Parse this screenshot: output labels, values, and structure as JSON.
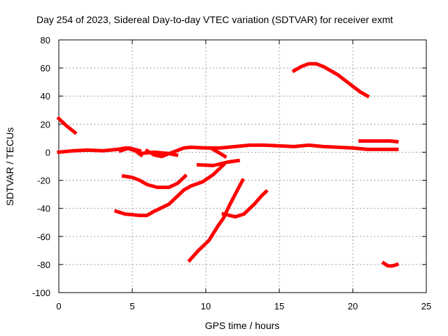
{
  "chart_data": {
    "type": "line",
    "title": "Day 254 of 2023, Sidereal Day-to-day VTEC variation (SDTVAR) for receiver exmt",
    "xlabel": "GPS time / hours",
    "ylabel": "SDTVAR / TECUs",
    "xlim": [
      0,
      25
    ],
    "ylim": [
      -100,
      80
    ],
    "xticks": [
      0,
      5,
      10,
      15,
      20,
      25
    ],
    "yticks": [
      -100,
      -80,
      -60,
      -40,
      -20,
      0,
      20,
      40,
      60,
      80
    ],
    "grid": true,
    "color": "#ff0000",
    "series": [
      {
        "name": "s1",
        "points": [
          [
            0,
            24
          ],
          [
            0.5,
            19
          ],
          [
            1.1,
            14
          ]
        ]
      },
      {
        "name": "s2",
        "points": [
          [
            0,
            0
          ],
          [
            1,
            1
          ],
          [
            2,
            1.5
          ],
          [
            3,
            1
          ],
          [
            4,
            2
          ],
          [
            4.6,
            3
          ],
          [
            5.2,
            1
          ],
          [
            5.6,
            -2
          ]
        ]
      },
      {
        "name": "s3",
        "points": [
          [
            4.2,
            1
          ],
          [
            4.8,
            3
          ],
          [
            5.5,
            1
          ]
        ]
      },
      {
        "name": "s4",
        "points": [
          [
            5.5,
            -1
          ],
          [
            6.5,
            0
          ],
          [
            7.5,
            -1
          ],
          [
            8,
            1
          ],
          [
            8.5,
            3
          ],
          [
            9,
            3.5
          ],
          [
            10,
            3
          ],
          [
            11,
            3
          ],
          [
            12,
            4
          ],
          [
            13,
            5
          ],
          [
            14,
            5
          ],
          [
            15,
            4.5
          ],
          [
            16,
            4
          ],
          [
            17,
            5
          ],
          [
            18,
            4
          ],
          [
            19,
            3.5
          ],
          [
            20,
            3
          ],
          [
            21,
            2
          ],
          [
            22,
            2
          ],
          [
            23,
            2
          ]
        ]
      },
      {
        "name": "s5",
        "points": [
          [
            6,
            1
          ],
          [
            6.5,
            -2
          ],
          [
            7,
            -3
          ],
          [
            7.5,
            -1
          ],
          [
            8,
            -2
          ]
        ]
      },
      {
        "name": "s6",
        "points": [
          [
            9.5,
            -9
          ],
          [
            10.5,
            -9.5
          ],
          [
            11.5,
            -7
          ],
          [
            12.2,
            -6
          ]
        ]
      },
      {
        "name": "s7",
        "points": [
          [
            10.5,
            2
          ],
          [
            11,
            -1
          ],
          [
            11.3,
            -3
          ]
        ]
      },
      {
        "name": "s8",
        "points": [
          [
            4.4,
            -17
          ],
          [
            5,
            -18
          ],
          [
            5.5,
            -20
          ],
          [
            6,
            -23
          ],
          [
            6.7,
            -25
          ],
          [
            7.5,
            -25
          ],
          [
            8.1,
            -22
          ],
          [
            8.6,
            -17
          ]
        ]
      },
      {
        "name": "s9",
        "points": [
          [
            3.9,
            -42
          ],
          [
            4.5,
            -44
          ],
          [
            5.5,
            -45
          ],
          [
            6,
            -45
          ],
          [
            6.5,
            -42
          ],
          [
            7.5,
            -37
          ],
          [
            8,
            -32
          ],
          [
            8.5,
            -27
          ],
          [
            9,
            -24
          ],
          [
            9.8,
            -21
          ],
          [
            10.5,
            -16
          ],
          [
            11,
            -11
          ],
          [
            11.2,
            -9
          ]
        ]
      },
      {
        "name": "s10",
        "points": [
          [
            8.9,
            -77
          ],
          [
            9.5,
            -70
          ],
          [
            10.2,
            -63
          ],
          [
            10.8,
            -53
          ],
          [
            11.2,
            -47
          ],
          [
            11.6,
            -38
          ],
          [
            12,
            -30
          ],
          [
            12.3,
            -24
          ],
          [
            12.5,
            -20
          ]
        ]
      },
      {
        "name": "s11",
        "points": [
          [
            11.2,
            -44
          ],
          [
            12,
            -46
          ],
          [
            12.6,
            -44
          ],
          [
            13.3,
            -37
          ],
          [
            13.8,
            -31
          ],
          [
            14.1,
            -28
          ]
        ]
      },
      {
        "name": "s12",
        "points": [
          [
            16,
            58
          ],
          [
            16.5,
            61
          ],
          [
            17,
            63
          ],
          [
            17.5,
            63
          ],
          [
            18,
            61
          ],
          [
            18.5,
            58
          ],
          [
            19,
            55
          ],
          [
            19.5,
            51
          ],
          [
            20,
            47
          ],
          [
            20.5,
            43
          ],
          [
            21,
            40
          ]
        ]
      },
      {
        "name": "s13",
        "points": [
          [
            20.5,
            8
          ],
          [
            21.5,
            8
          ],
          [
            22.5,
            8
          ],
          [
            23,
            7.5
          ]
        ]
      },
      {
        "name": "s14",
        "points": [
          [
            22.1,
            -79
          ],
          [
            22.4,
            -81
          ],
          [
            22.7,
            -81
          ],
          [
            23,
            -80
          ]
        ]
      }
    ]
  }
}
